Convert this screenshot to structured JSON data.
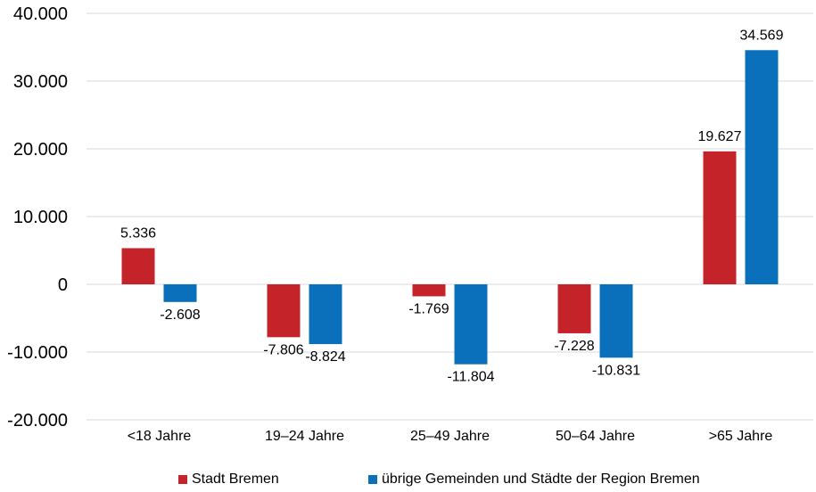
{
  "chart_data": {
    "type": "bar",
    "title": "",
    "xlabel": "",
    "ylabel": "",
    "categories": [
      "<18 Jahre",
      "19–24 Jahre",
      "25–49 Jahre",
      "50–64 Jahre",
      ">65 Jahre"
    ],
    "series": [
      {
        "name": "Stadt Bremen",
        "color": "#c5232a",
        "values": [
          5336,
          -7806,
          -1769,
          -7228,
          19627
        ],
        "labels": [
          "5.336",
          "-7.806",
          "-1.769",
          "-7.228",
          "19.627"
        ]
      },
      {
        "name": "übrige Gemeinden und Städte der Region Bremen",
        "color": "#0b70bb",
        "values": [
          -2608,
          -8824,
          -11804,
          -10831,
          34569
        ],
        "labels": [
          "-2.608",
          "-8.824",
          "-11.804",
          "-10.831",
          "34.569"
        ]
      }
    ],
    "ylim": [
      -20000,
      40000
    ],
    "yticks": [
      40000,
      30000,
      20000,
      10000,
      0,
      -10000,
      -20000
    ],
    "ytick_labels": [
      "40.000",
      "30.000",
      "20.000",
      "10.000",
      "0",
      "-10.000",
      "-20.000"
    ],
    "grid": true,
    "legend_position": "bottom"
  }
}
